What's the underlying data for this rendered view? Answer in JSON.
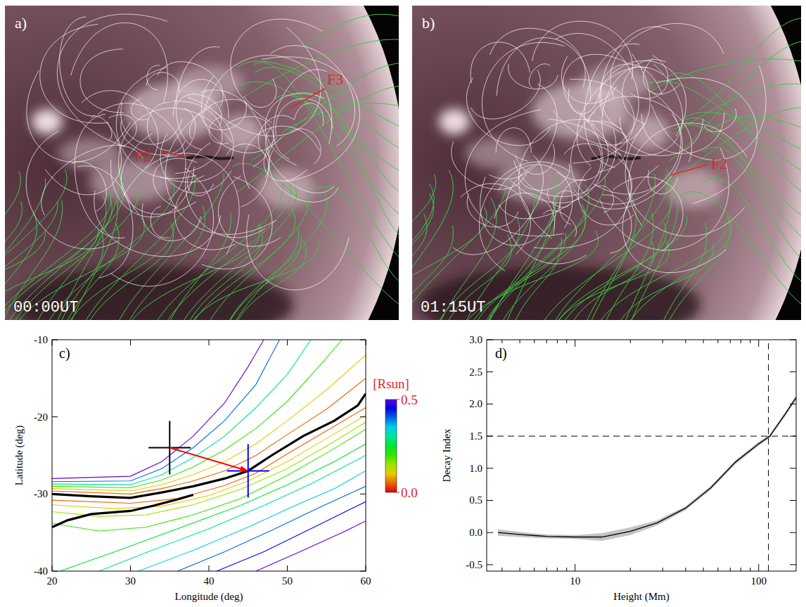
{
  "chart_data": [
    {
      "type": "image",
      "panel": "a)",
      "time": "00:00UT",
      "annotations": [
        "F2",
        "F3"
      ]
    },
    {
      "type": "image",
      "panel": "b)",
      "time": "01:15UT",
      "annotations": [
        "F2"
      ]
    },
    {
      "type": "contour",
      "panel": "c)",
      "x_label": "Longitude (deg)",
      "y_label": "Latitude (deg)",
      "xlim": [
        20,
        60
      ],
      "ylim": [
        -40,
        -10
      ],
      "xticks": [
        20,
        30,
        40,
        50,
        60
      ],
      "yticks": [
        -40,
        -30,
        -20,
        -10
      ],
      "contours": [
        {
          "level": 0.05,
          "x": [
            20,
            30,
            34,
            38,
            42,
            46,
            50,
            55,
            60
          ],
          "y": [
            -29.6,
            -30,
            -29.3,
            -28.3,
            -27,
            -25,
            -22.3,
            -19,
            -15
          ]
        },
        {
          "level": 0.1,
          "x": [
            20,
            30,
            34,
            38,
            42,
            46,
            50,
            55,
            60
          ],
          "y": [
            -29.3,
            -29.6,
            -28.8,
            -27.5,
            -25.8,
            -23.5,
            -20.5,
            -16.5,
            -12
          ]
        },
        {
          "level": 0.2,
          "x": [
            20,
            30,
            34,
            38,
            42,
            46,
            50,
            54,
            57
          ],
          "y": [
            -29,
            -29.2,
            -28.2,
            -26.5,
            -24.3,
            -21.5,
            -18,
            -13.5,
            -10
          ]
        },
        {
          "level": 0.3,
          "x": [
            20,
            30,
            34,
            38,
            42,
            46,
            50,
            53
          ],
          "y": [
            -28.7,
            -28.8,
            -27.5,
            -25.3,
            -22.5,
            -18.8,
            -14.5,
            -10
          ]
        },
        {
          "level": 0.4,
          "x": [
            20,
            30,
            34,
            38,
            42,
            46,
            49
          ],
          "y": [
            -28.4,
            -28.3,
            -26.7,
            -24,
            -20.5,
            -15.8,
            -10
          ]
        },
        {
          "level": 0.5,
          "x": [
            20,
            30,
            34,
            38,
            42,
            45,
            47
          ],
          "y": [
            -28,
            -27.7,
            -25.8,
            -22.5,
            -18.2,
            -13.5,
            -10
          ]
        },
        {
          "level": 0.05,
          "x": [
            20,
            30,
            36,
            42,
            46,
            50,
            55,
            60
          ],
          "y": [
            -30.8,
            -31.2,
            -30.6,
            -28.9,
            -27.3,
            -24.8,
            -21.8,
            -18.8
          ]
        },
        {
          "level": 0.1,
          "x": [
            20,
            28,
            34,
            40,
            45,
            50,
            55,
            60
          ],
          "y": [
            -31.4,
            -31.9,
            -31.6,
            -30.2,
            -28.3,
            -25.8,
            -22.8,
            -19.8
          ]
        },
        {
          "level": 0.15,
          "x": [
            20,
            26,
            32,
            38,
            44,
            50,
            55,
            60
          ],
          "y": [
            -32.3,
            -32.9,
            -32.7,
            -31.4,
            -29.4,
            -26.7,
            -23.8,
            -20.7
          ]
        },
        {
          "level": 0.2,
          "x": [
            20,
            26,
            32,
            38,
            44,
            50,
            56,
            60
          ],
          "y": [
            -33.8,
            -34.8,
            -34.3,
            -32.7,
            -30.6,
            -27.6,
            -24.1,
            -21.6
          ]
        },
        {
          "level": 0.25,
          "x": [
            21,
            28,
            36,
            44,
            50,
            56,
            60
          ],
          "y": [
            -40,
            -37.5,
            -34.5,
            -31.5,
            -28.8,
            -25.8,
            -23.5
          ]
        },
        {
          "level": 0.3,
          "x": [
            26,
            33,
            40,
            47,
            53,
            60
          ],
          "y": [
            -40,
            -37.2,
            -34.5,
            -31.5,
            -28.7,
            -25
          ]
        },
        {
          "level": 0.35,
          "x": [
            31,
            38,
            45,
            51,
            56,
            60
          ],
          "y": [
            -40,
            -37.3,
            -34.3,
            -31.5,
            -29.3,
            -27
          ]
        },
        {
          "level": 0.4,
          "x": [
            36,
            42,
            48,
            54,
            60
          ],
          "y": [
            -40,
            -37.5,
            -34.7,
            -31.8,
            -29
          ]
        },
        {
          "level": 0.45,
          "x": [
            41,
            47,
            53,
            60
          ],
          "y": [
            -40,
            -37.5,
            -34.5,
            -31
          ]
        },
        {
          "level": 0.5,
          "x": [
            46,
            52,
            57,
            60
          ],
          "y": [
            -40,
            -37.3,
            -35,
            -33.5
          ]
        }
      ],
      "pil": [
        {
          "x": [
            20,
            25,
            30,
            34,
            38,
            42,
            45,
            48,
            52,
            56,
            59,
            60
          ],
          "y": [
            -30,
            -30.3,
            -30.5,
            -29.8,
            -29,
            -28,
            -27,
            -25,
            -22.5,
            -20.5,
            -18.5,
            -17
          ]
        },
        {
          "x": [
            20,
            22,
            25,
            30,
            33,
            36,
            38
          ],
          "y": [
            -34.3,
            -33.4,
            -32.6,
            -32.2,
            -31.5,
            -30.7,
            -30.1
          ]
        }
      ],
      "markers": [
        {
          "x": 35,
          "y": -24,
          "color": "black"
        },
        {
          "x": 45,
          "y": -27,
          "color": "blue"
        }
      ],
      "arrow": {
        "x": [
          35,
          45
        ],
        "y": [
          -24,
          -27
        ],
        "color": "red"
      },
      "colorbar": {
        "label": "[Rsun]",
        "range": [
          0,
          0.5
        ],
        "ticks": [
          {
            "value": 0,
            "label": "0.0"
          },
          0.5
        ]
      }
    },
    {
      "type": "line",
      "panel": "d)",
      "x_label": "Height (Mm)",
      "y_label": "Decay Index",
      "log": "x",
      "xlim": [
        3.3,
        160
      ],
      "ylim": [
        -0.6,
        3.0
      ],
      "xticks": [
        10,
        100
      ],
      "yticks": [
        -0.5,
        {
          "value": 0,
          "label": "0.0"
        },
        0.5,
        {
          "value": 1,
          "label": "1.0"
        },
        1.5,
        {
          "value": 2,
          "label": "2.0"
        },
        2.5,
        {
          "value": 3,
          "label": "3.0"
        }
      ],
      "x": [
        3.8,
        5,
        7,
        10,
        14,
        20,
        28,
        40,
        55,
        75,
        100,
        115,
        140,
        160
      ],
      "series": [
        {
          "color": "black",
          "values": [
            0.0,
            -0.03,
            -0.06,
            -0.07,
            -0.07,
            0.02,
            0.15,
            0.38,
            0.7,
            1.1,
            1.38,
            1.5,
            1.85,
            2.1
          ],
          "error": [
            0.05,
            0.04,
            0.03,
            0.03,
            0.06,
            0.06,
            0.04,
            0.03,
            0.03,
            0.03,
            0.03,
            0.03,
            0.03,
            0.03
          ]
        }
      ],
      "reference_lines": {
        "x": 113,
        "y": 1.5
      }
    }
  ]
}
